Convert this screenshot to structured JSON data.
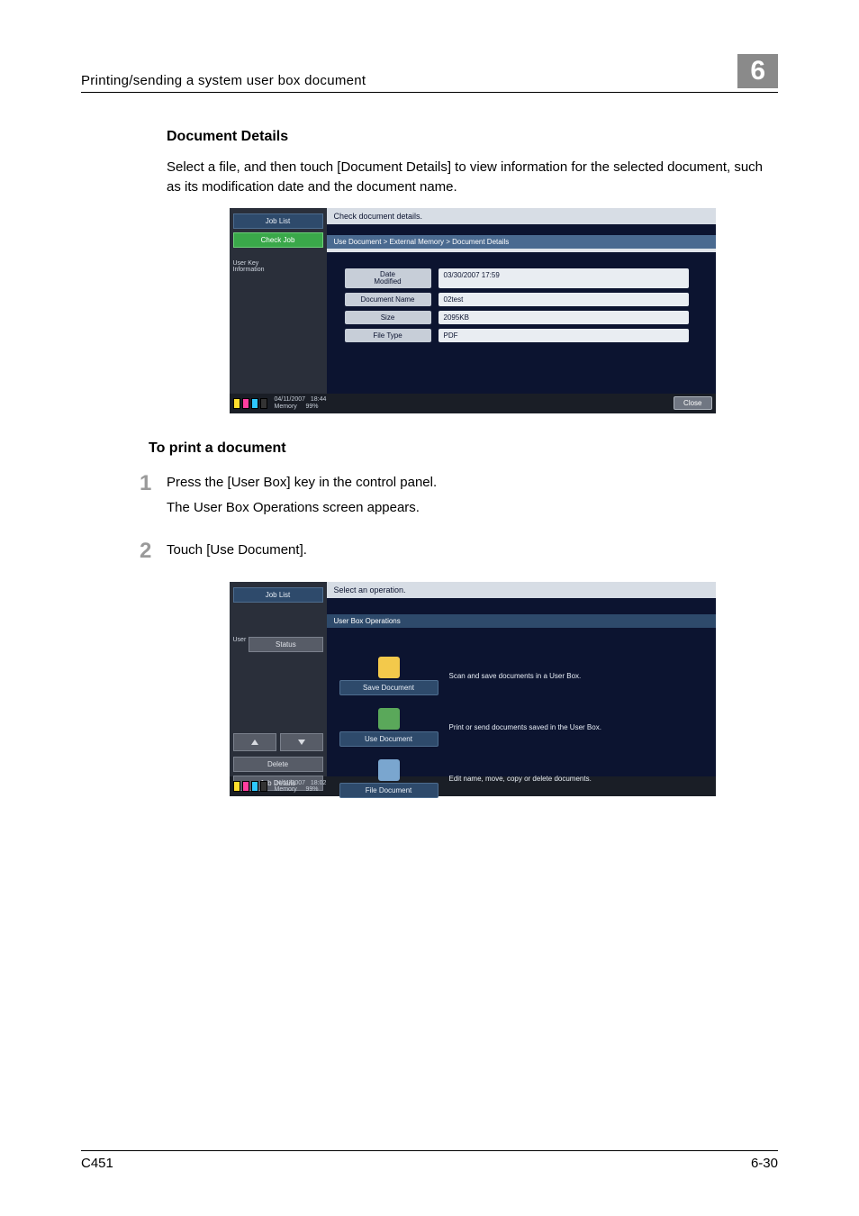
{
  "header": {
    "title": "Printing/sending a system user box document",
    "chapter": "6"
  },
  "section_title": "Document Details",
  "intro_text": "Select a file, and then touch [Document Details] to view information for the selected document, such as its modification date and the document name.",
  "screenshot1": {
    "tab_job_list": "Job List",
    "tab_check_job": "Check Job",
    "side_label": "User Key\nInformation",
    "instruction": "Check document details.",
    "breadcrumb": "Use Document > External Memory > Document Details",
    "rows": [
      {
        "key": "Date\nModified",
        "val": "03/30/2007 17:59"
      },
      {
        "key": "Document Name",
        "val": "02test"
      },
      {
        "key": "Size",
        "val": "2095KB"
      },
      {
        "key": "File Type",
        "val": "PDF"
      }
    ],
    "bottom_date": "04/11/2007",
    "bottom_time": "18:44",
    "bottom_mem_label": "Memory",
    "bottom_mem_val": "99%",
    "close": "Close"
  },
  "sub_head": "To print a document",
  "steps": [
    {
      "num": "1",
      "lines": [
        "Press the [User Box] key in the control panel.",
        "The User Box Operations screen appears."
      ]
    },
    {
      "num": "2",
      "lines": [
        "Touch [Use Document]."
      ]
    }
  ],
  "screenshot2": {
    "tab_job_list": "Job List",
    "side_user": "User",
    "side_status": "Status",
    "delete": "Delete",
    "job_details": "Job Details",
    "instruction": "Select an operation.",
    "title_row": "User Box Operations",
    "ops": [
      {
        "btn": "Save Document",
        "desc": "Scan and save documents in a User Box.",
        "icon_bg": "#f3c94b"
      },
      {
        "btn": "Use Document",
        "desc": "Print or send documents saved in the User Box.",
        "icon_bg": "#5aa85a"
      },
      {
        "btn": "File Document",
        "desc": "Edit name, move, copy or delete documents.",
        "icon_bg": "#7aa6cf"
      }
    ],
    "bottom_date": "04/11/2007",
    "bottom_time": "18:02",
    "bottom_mem_label": "Memory",
    "bottom_mem_val": "99%"
  },
  "footer": {
    "left": "C451",
    "right": "6-30"
  }
}
